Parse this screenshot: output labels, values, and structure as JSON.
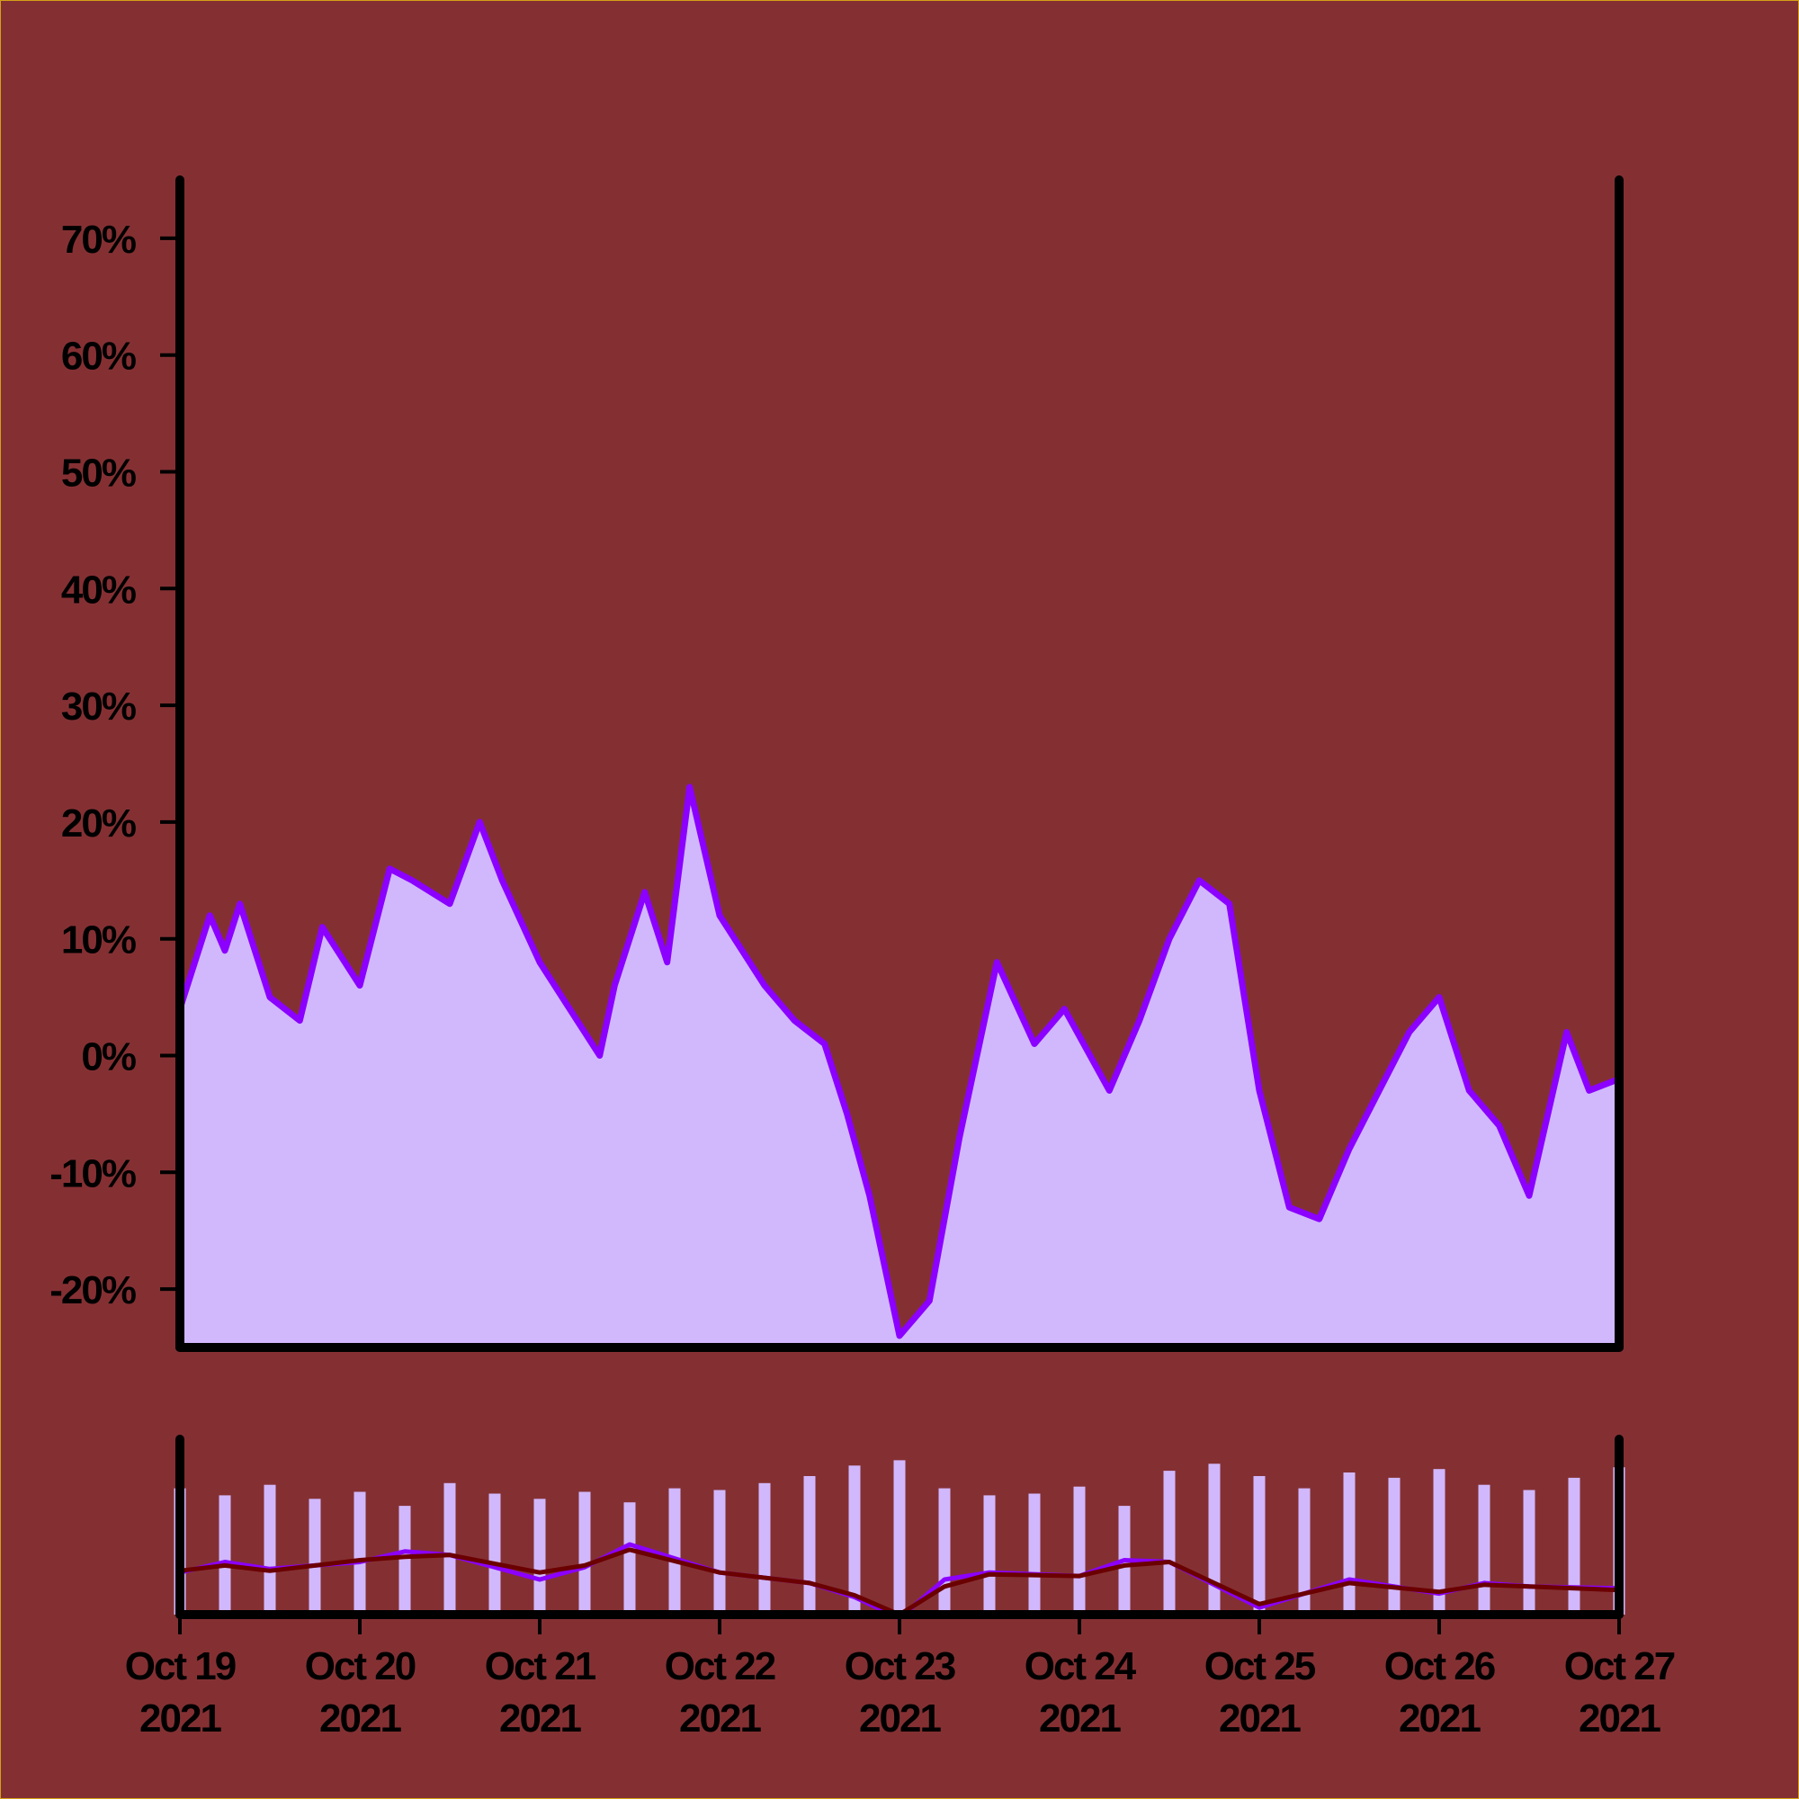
{
  "colors": {
    "background": "#843033",
    "frame": "#d4a017",
    "area_fill": "#d1b8fd",
    "line": "#8b00ff",
    "moving_average": "#6b0000",
    "axis": "#000000"
  },
  "chart_data": [
    {
      "type": "area",
      "title": "",
      "xlabel": "",
      "ylabel": "",
      "y_unit": "%",
      "ylim": [
        -25,
        75
      ],
      "y_ticks": [
        "70%",
        "60%",
        "50%",
        "40%",
        "30%",
        "20%",
        "10%",
        "0%",
        "-10%",
        "-20%"
      ],
      "y_tick_values": [
        70,
        60,
        50,
        40,
        30,
        20,
        10,
        0,
        -10,
        -20
      ],
      "xlim": [
        "2021-10-19",
        "2021-10-27"
      ],
      "grid": false,
      "legend": "none",
      "series": [
        {
          "x": [
            "2021-10-19 00:00",
            "2021-10-19 04:00",
            "2021-10-19 06:00",
            "2021-10-19 08:00",
            "2021-10-19 12:00",
            "2021-10-19 16:00",
            "2021-10-19 19:00",
            "2021-10-20 00:00",
            "2021-10-20 04:00",
            "2021-10-20 07:00",
            "2021-10-20 12:00",
            "2021-10-20 16:00",
            "2021-10-20 19:00",
            "2021-10-21 00:00",
            "2021-10-21 04:00",
            "2021-10-21 08:00",
            "2021-10-21 10:00",
            "2021-10-21 14:00",
            "2021-10-21 17:00",
            "2021-10-21 20:00",
            "2021-10-22 00:00",
            "2021-10-22 06:00",
            "2021-10-22 10:00",
            "2021-10-22 14:00",
            "2021-10-22 17:00",
            "2021-10-22 20:00",
            "2021-10-23 00:00",
            "2021-10-23 04:00",
            "2021-10-23 08:00",
            "2021-10-23 13:00",
            "2021-10-23 18:00",
            "2021-10-23 22:00",
            "2021-10-24 04:00",
            "2021-10-24 08:00",
            "2021-10-24 12:00",
            "2021-10-24 16:00",
            "2021-10-24 20:00",
            "2021-10-25 00:00",
            "2021-10-25 04:00",
            "2021-10-25 08:00",
            "2021-10-25 12:00",
            "2021-10-25 16:00",
            "2021-10-25 20:00",
            "2021-10-26 00:00",
            "2021-10-26 04:00",
            "2021-10-26 08:00",
            "2021-10-26 12:00",
            "2021-10-26 17:00",
            "2021-10-26 20:00",
            "2021-10-27 00:00"
          ],
          "values": [
            4,
            12,
            9,
            13,
            5,
            3,
            11,
            6,
            16,
            15,
            13,
            20,
            15,
            8,
            4,
            0,
            6,
            14,
            8,
            23,
            12,
            6,
            3,
            1,
            -5,
            -12,
            -24,
            -21,
            -7,
            8,
            1,
            4,
            -3,
            3,
            10,
            15,
            13,
            -3,
            -13,
            -14,
            -8,
            -3,
            2,
            5,
            -3,
            -6,
            -12,
            2,
            -3,
            -2
          ]
        }
      ]
    },
    {
      "type": "bar",
      "title": "",
      "x_ticks": [
        [
          "Oct 19",
          "2021"
        ],
        [
          "Oct 20",
          "2021"
        ],
        [
          "Oct 21",
          "2021"
        ],
        [
          "Oct 22",
          "2021"
        ],
        [
          "Oct 23",
          "2021"
        ],
        [
          "Oct 24",
          "2021"
        ],
        [
          "Oct 25",
          "2021"
        ],
        [
          "Oct 26",
          "2021"
        ],
        [
          "Oct 27",
          "2021"
        ]
      ],
      "xlim": [
        "2021-10-19",
        "2021-10-27"
      ],
      "ylim": [
        0,
        1
      ],
      "legend": "none",
      "bars": {
        "x": [
          "2021-10-19 00:00",
          "2021-10-19 06:00",
          "2021-10-19 12:00",
          "2021-10-19 18:00",
          "2021-10-20 00:00",
          "2021-10-20 06:00",
          "2021-10-20 12:00",
          "2021-10-20 18:00",
          "2021-10-21 00:00",
          "2021-10-21 06:00",
          "2021-10-21 12:00",
          "2021-10-21 18:00",
          "2021-10-22 00:00",
          "2021-10-22 06:00",
          "2021-10-22 12:00",
          "2021-10-22 18:00",
          "2021-10-23 00:00",
          "2021-10-23 06:00",
          "2021-10-23 12:00",
          "2021-10-23 18:00",
          "2021-10-24 00:00",
          "2021-10-24 06:00",
          "2021-10-24 12:00",
          "2021-10-24 18:00",
          "2021-10-25 00:00",
          "2021-10-25 06:00",
          "2021-10-25 12:00",
          "2021-10-25 18:00",
          "2021-10-26 00:00",
          "2021-10-26 06:00",
          "2021-10-26 12:00",
          "2021-10-26 18:00",
          "2021-10-27 00:00"
        ],
        "values": [
          0.72,
          0.68,
          0.74,
          0.66,
          0.7,
          0.62,
          0.75,
          0.69,
          0.66,
          0.7,
          0.64,
          0.72,
          0.71,
          0.75,
          0.79,
          0.85,
          0.88,
          0.72,
          0.68,
          0.69,
          0.73,
          0.62,
          0.82,
          0.86,
          0.79,
          0.72,
          0.81,
          0.78,
          0.83,
          0.74,
          0.71,
          0.78,
          0.84
        ]
      },
      "lines": [
        {
          "x": [
            "2021-10-19 00:00",
            "2021-10-19 06:00",
            "2021-10-19 12:00",
            "2021-10-20 00:00",
            "2021-10-20 06:00",
            "2021-10-20 12:00",
            "2021-10-21 00:00",
            "2021-10-21 06:00",
            "2021-10-21 12:00",
            "2021-10-22 00:00",
            "2021-10-22 12:00",
            "2021-10-22 18:00",
            "2021-10-23 00:00",
            "2021-10-23 06:00",
            "2021-10-23 12:00",
            "2021-10-24 00:00",
            "2021-10-24 06:00",
            "2021-10-24 12:00",
            "2021-10-25 00:00",
            "2021-10-25 12:00",
            "2021-10-26 00:00",
            "2021-10-26 06:00",
            "2021-10-26 12:00",
            "2021-10-27 00:00"
          ],
          "values": [
            0.24,
            0.3,
            0.26,
            0.3,
            0.36,
            0.34,
            0.2,
            0.27,
            0.4,
            0.24,
            0.18,
            0.1,
            -0.02,
            0.2,
            0.24,
            0.22,
            0.31,
            0.3,
            0.04,
            0.2,
            0.12,
            0.18,
            0.16,
            0.15
          ]
        },
        {
          "x": [
            "2021-10-19 00:00",
            "2021-10-19 06:00",
            "2021-10-19 12:00",
            "2021-10-20 00:00",
            "2021-10-20 06:00",
            "2021-10-20 12:00",
            "2021-10-21 00:00",
            "2021-10-21 06:00",
            "2021-10-21 12:00",
            "2021-10-22 00:00",
            "2021-10-22 12:00",
            "2021-10-22 18:00",
            "2021-10-23 00:00",
            "2021-10-23 06:00",
            "2021-10-23 12:00",
            "2021-10-24 00:00",
            "2021-10-24 06:00",
            "2021-10-24 12:00",
            "2021-10-25 00:00",
            "2021-10-25 12:00",
            "2021-10-26 00:00",
            "2021-10-26 06:00",
            "2021-10-26 12:00",
            "2021-10-27 00:00"
          ],
          "values": [
            0.25,
            0.28,
            0.25,
            0.31,
            0.33,
            0.34,
            0.24,
            0.28,
            0.37,
            0.24,
            0.18,
            0.11,
            0.0,
            0.16,
            0.23,
            0.22,
            0.28,
            0.3,
            0.06,
            0.18,
            0.13,
            0.17,
            0.16,
            0.14
          ]
        }
      ]
    }
  ]
}
